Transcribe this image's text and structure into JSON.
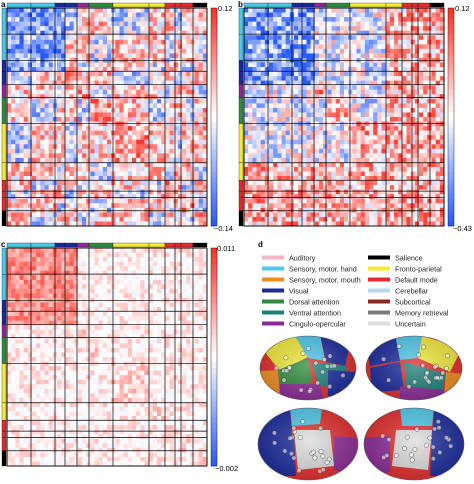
{
  "panels": [
    {
      "label": "a",
      "cb_max": "0.12",
      "cb_min": "−0.14",
      "pattern": "a"
    },
    {
      "label": "b",
      "cb_max": "0.12",
      "cb_min": "−0.43",
      "pattern": "b"
    },
    {
      "label": "c",
      "cb_max": "0.011",
      "cb_min": "−0.002",
      "pattern": "c"
    }
  ],
  "panel_d": {
    "label": "d",
    "legend": [
      {
        "name": "Auditory",
        "color": "#f4b6c2"
      },
      {
        "name": "Salience",
        "color": "#000000"
      },
      {
        "name": "Sensory, motor, hand",
        "color": "#4fc8e8"
      },
      {
        "name": "Fronto-parietal",
        "color": "#f2ea3a"
      },
      {
        "name": "Sensory, motor, mouth",
        "color": "#f28c1e"
      },
      {
        "name": "Default mode",
        "color": "#e22b2b"
      },
      {
        "name": "Visual",
        "color": "#1a2a9c"
      },
      {
        "name": "Cerebellar",
        "color": "#b9d8ec"
      },
      {
        "name": "Dorsal attention",
        "color": "#2e8b3e"
      },
      {
        "name": "Subcortical",
        "color": "#8a2a1f"
      },
      {
        "name": "Ventral attention",
        "color": "#1d7f77"
      },
      {
        "name": "Memory retrieval",
        "color": "#7a7a7a"
      },
      {
        "name": "Cingulo-opercular",
        "color": "#8b2a96"
      },
      {
        "name": "Uncertain",
        "color": "#dcdcdc"
      }
    ]
  },
  "network_bar_colors": [
    "#4fc8e8",
    "#4fc8e8",
    "#1a2a9c",
    "#1a2a9c",
    "#8b2a96",
    "#2e8b3e",
    "#f2ea3a",
    "#f2ea3a",
    "#e22b2b",
    "#e22b2b",
    "#e22b2b",
    "#000000",
    "#1d7f77",
    "#8a2a1f",
    "#7a7a7a",
    "#ffffff"
  ]
}
